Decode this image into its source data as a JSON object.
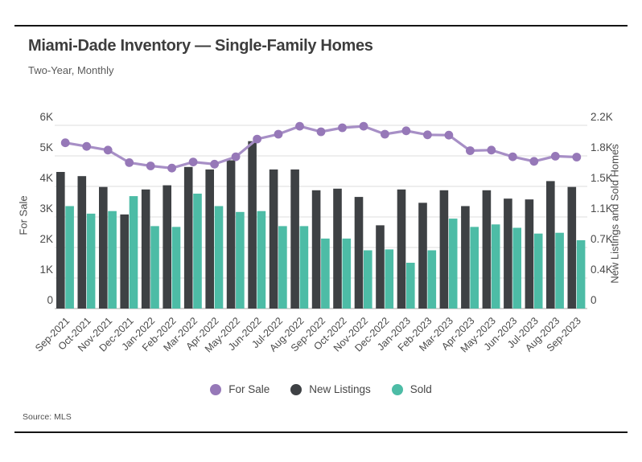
{
  "page": {
    "title": "Miami-Dade Inventory — Single-Family Homes",
    "subtitle": "Two-Year, Monthly",
    "source": "Source: MLS"
  },
  "colors": {
    "background": "#ffffff",
    "rule": "#141414",
    "gridline": "#dcdcdc",
    "baseline": "#c6c6c6",
    "tick_text": "#4a4a4a",
    "title_text": "#3d3d3d"
  },
  "chart_data": {
    "type": "combo",
    "categories": [
      "Sep-2021",
      "Oct-2021",
      "Nov-2021",
      "Dec-2021",
      "Jan-2022",
      "Feb-2022",
      "Mar-2022",
      "Apr-2022",
      "May-2022",
      "Jun-2022",
      "Jul-2022",
      "Aug-2022",
      "Sep-2022",
      "Oct-2022",
      "Nov-2022",
      "Dec-2022",
      "Jan-2023",
      "Feb-2023",
      "Mar-2023",
      "Apr-2023",
      "May-2023",
      "Jun-2023",
      "Jul-2023",
      "Aug-2023",
      "Sep-2023"
    ],
    "series": [
      {
        "id": "for-sale",
        "name": "For Sale",
        "type": "line",
        "axis": "left",
        "color": "#9678b8",
        "line_color": "#a78fc6",
        "values": [
          5430,
          5310,
          5190,
          4780,
          4670,
          4600,
          4800,
          4730,
          4970,
          5550,
          5710,
          5970,
          5790,
          5920,
          5970,
          5710,
          5820,
          5690,
          5680,
          5170,
          5190,
          4970,
          4820,
          4990,
          4960
        ]
      },
      {
        "id": "new-listings",
        "name": "New Listings",
        "type": "bar",
        "axis": "right",
        "color": "#3e4144",
        "values": [
          1640,
          1590,
          1460,
          1130,
          1430,
          1480,
          1700,
          1670,
          1780,
          2010,
          1670,
          1670,
          1420,
          1440,
          1340,
          1000,
          1430,
          1270,
          1420,
          1230,
          1420,
          1320,
          1310,
          1530,
          1460
        ]
      },
      {
        "id": "sold",
        "name": "Sold",
        "type": "bar",
        "axis": "right",
        "color": "#4dbca6",
        "values": [
          1230,
          1140,
          1170,
          1350,
          990,
          980,
          1380,
          1230,
          1160,
          1170,
          990,
          990,
          840,
          840,
          700,
          710,
          550,
          700,
          1080,
          980,
          1010,
          970,
          900,
          910,
          820
        ]
      }
    ],
    "left_axis": {
      "label": "For Sale",
      "min": 0,
      "max": 6000,
      "tick_labels": [
        "0",
        "1K",
        "2K",
        "3K",
        "4K",
        "5K",
        "6K"
      ]
    },
    "right_axis": {
      "label": "New Listings and Sold Homes",
      "min": 0,
      "max": 2200,
      "tick_labels": [
        "0",
        "0.4K",
        "0.7K",
        "1.1K",
        "1.5K",
        "1.8K",
        "2.2K"
      ]
    },
    "grid": true,
    "legend_position": "bottom"
  }
}
